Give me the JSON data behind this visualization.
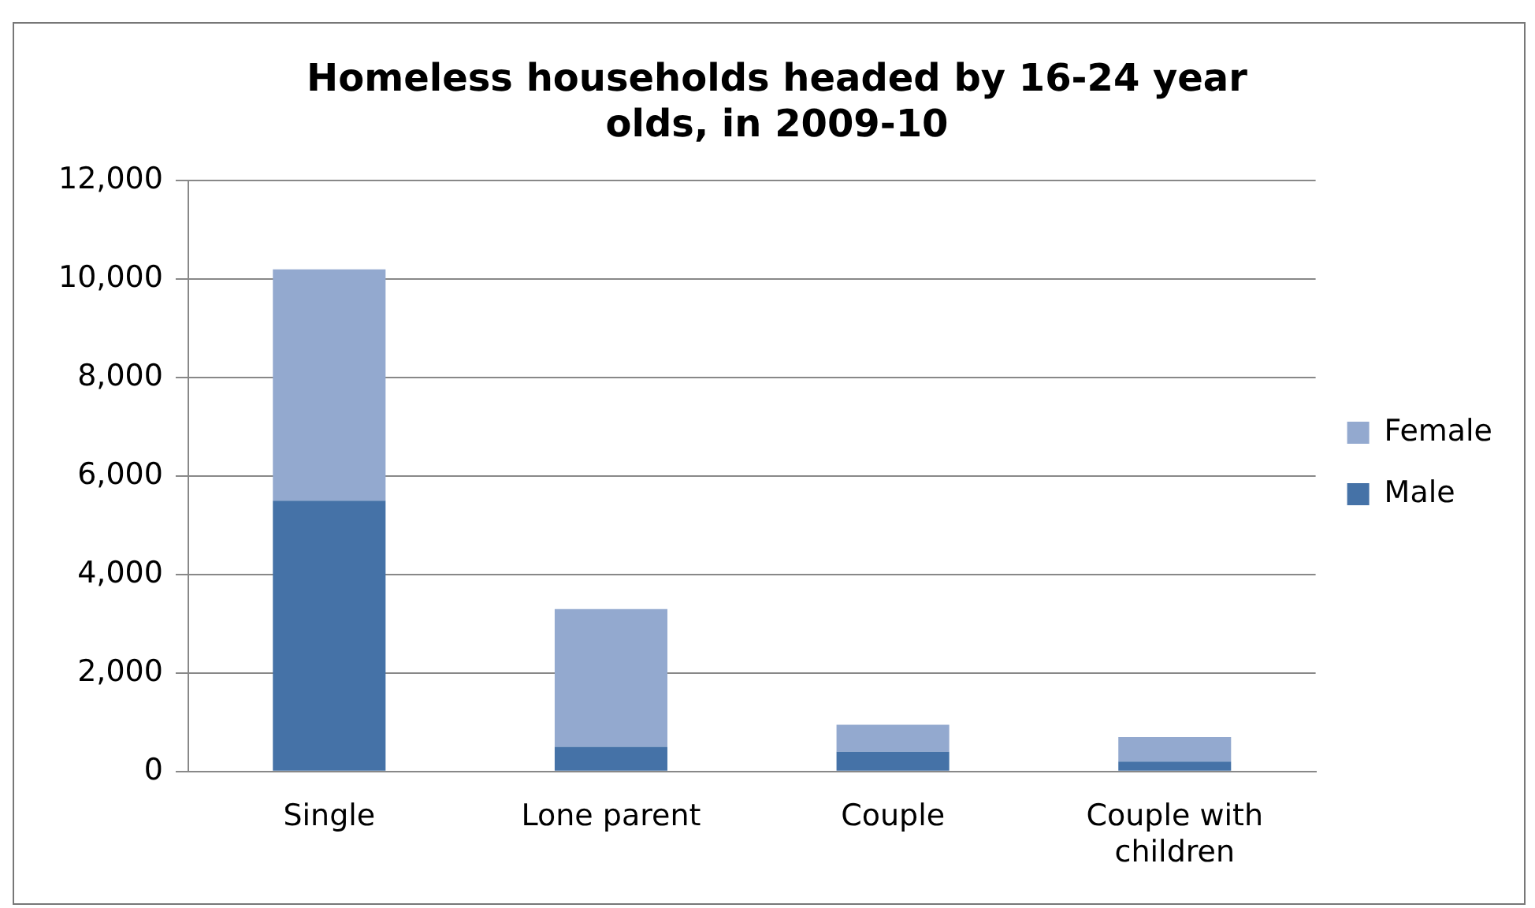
{
  "chart_data": {
    "type": "bar",
    "title": "Homeless households headed by 16-24 year olds, in 2009-10",
    "categories": [
      "Single",
      "Lone parent",
      "Couple",
      "Couple with children"
    ],
    "stacked": true,
    "series": [
      {
        "name": "Male",
        "color": "#4572a7",
        "values": [
          5500,
          500,
          400,
          200
        ]
      },
      {
        "name": "Female",
        "color": "#93a9cf",
        "values": [
          4700,
          2800,
          550,
          500
        ]
      }
    ],
    "ylim": [
      0,
      12000
    ],
    "yticks": [
      0,
      {
        "value": 2000,
        "label": "2,000"
      },
      {
        "value": 4000,
        "label": "4,000"
      },
      {
        "value": 6000,
        "label": "6,000"
      },
      {
        "value": 8000,
        "label": "8,000"
      },
      {
        "value": 10000,
        "label": "10,000"
      },
      {
        "value": 12000,
        "label": "12,000"
      }
    ],
    "grid": "y",
    "legend": "right"
  }
}
